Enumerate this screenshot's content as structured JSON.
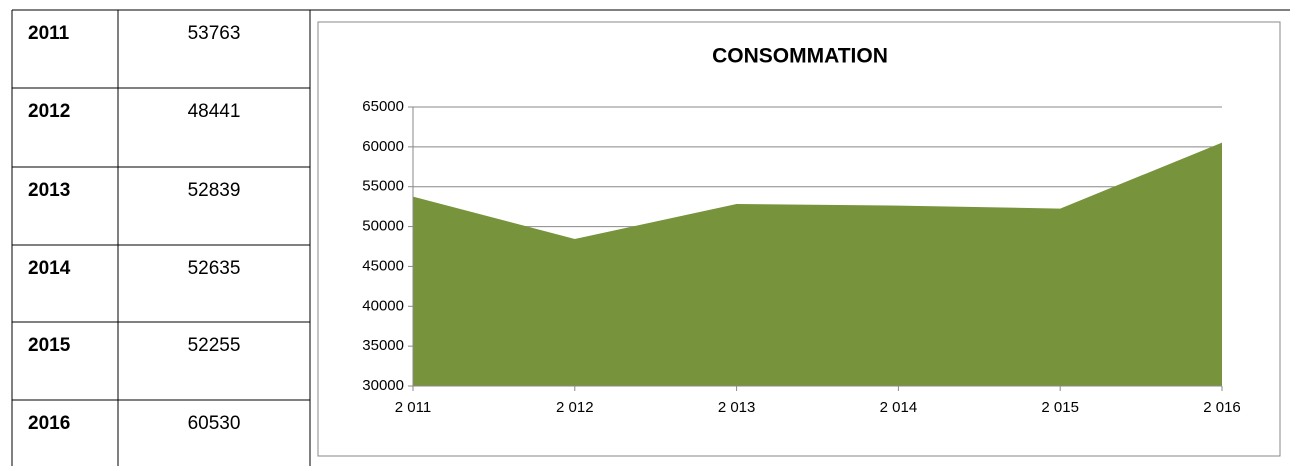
{
  "table": {
    "rows": [
      [
        "2011",
        "53763"
      ],
      [
        "2012",
        "48441"
      ],
      [
        "2013",
        "52839"
      ],
      [
        "2014",
        "52635"
      ],
      [
        "2015",
        "52255"
      ],
      [
        "2016",
        "60530"
      ]
    ]
  },
  "chart_data": {
    "type": "area",
    "title": "CONSOMMATION",
    "categories": [
      "2 011",
      "2 012",
      "2 013",
      "2 014",
      "2 015",
      "2 016"
    ],
    "values": [
      53763,
      48441,
      52839,
      52635,
      52255,
      60530
    ],
    "color": "#77933c",
    "ylim": [
      30000,
      65000
    ],
    "yticks": [
      30000,
      35000,
      40000,
      45000,
      50000,
      55000,
      60000,
      65000
    ],
    "grid": true
  }
}
